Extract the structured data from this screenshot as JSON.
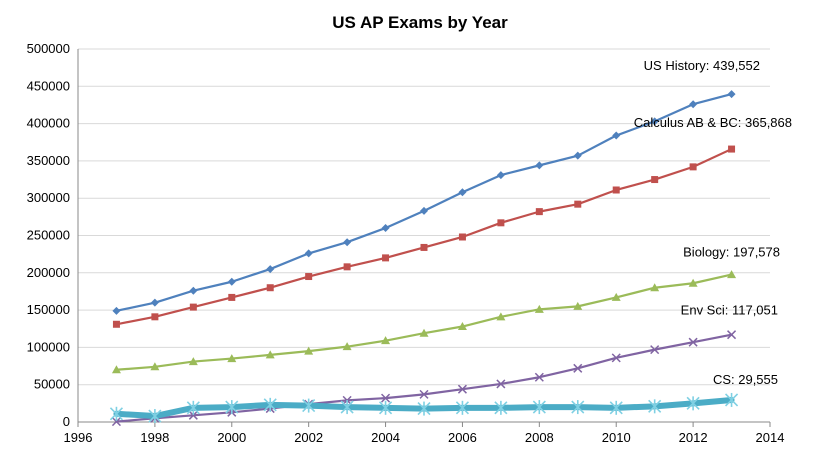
{
  "chart_data": {
    "type": "line",
    "title": "US AP Exams by Year",
    "xlabel": "",
    "ylabel": "",
    "xlim": [
      1996,
      2014
    ],
    "ylim": [
      0,
      500000
    ],
    "xticks": [
      "1996",
      "1998",
      "2000",
      "2002",
      "2004",
      "2006",
      "2008",
      "2010",
      "2012",
      "2014"
    ],
    "yticks": [
      "0",
      "50000",
      "100000",
      "150000",
      "200000",
      "250000",
      "300000",
      "350000",
      "400000",
      "450000",
      "500000"
    ],
    "grid": "horizontal",
    "legend": "none",
    "x": [
      1997,
      1998,
      1999,
      2000,
      2001,
      2002,
      2003,
      2004,
      2005,
      2006,
      2007,
      2008,
      2009,
      2010,
      2011,
      2012,
      2013
    ],
    "series": [
      {
        "annotation": "US History: 439,552",
        "color": "#4f81bd",
        "marker": "diamond",
        "values": [
          149000,
          160000,
          176000,
          188000,
          205000,
          226000,
          241000,
          260000,
          283000,
          308000,
          331000,
          344000,
          357000,
          384000,
          403000,
          426000,
          439552
        ]
      },
      {
        "annotation": "Calculus AB & BC: 365,868",
        "color": "#c0504d",
        "marker": "square",
        "values": [
          131000,
          141000,
          154000,
          167000,
          180000,
          195000,
          208000,
          220000,
          234000,
          248000,
          267000,
          282000,
          292000,
          311000,
          325000,
          342000,
          365868
        ]
      },
      {
        "annotation": "Biology: 197,578",
        "color": "#9bbb59",
        "marker": "triangle",
        "values": [
          70000,
          74000,
          81000,
          85000,
          90000,
          95000,
          101000,
          109000,
          119000,
          128000,
          141000,
          151000,
          155000,
          167000,
          180000,
          186000,
          197578
        ]
      },
      {
        "annotation": "Env Sci: 117,051",
        "color": "#8064a2",
        "marker": "x",
        "values": [
          500,
          5000,
          9000,
          13000,
          18000,
          24000,
          29000,
          32000,
          37000,
          44000,
          51000,
          60000,
          72000,
          86000,
          97000,
          107000,
          117051
        ]
      },
      {
        "annotation": "CS: 29,555",
        "color": "#4bacc6",
        "marker": "star",
        "thick": true,
        "values": [
          11000,
          8000,
          19000,
          20000,
          23000,
          22000,
          20000,
          19000,
          18000,
          19000,
          19000,
          20000,
          20000,
          19000,
          21000,
          25000,
          29555
        ]
      }
    ]
  }
}
